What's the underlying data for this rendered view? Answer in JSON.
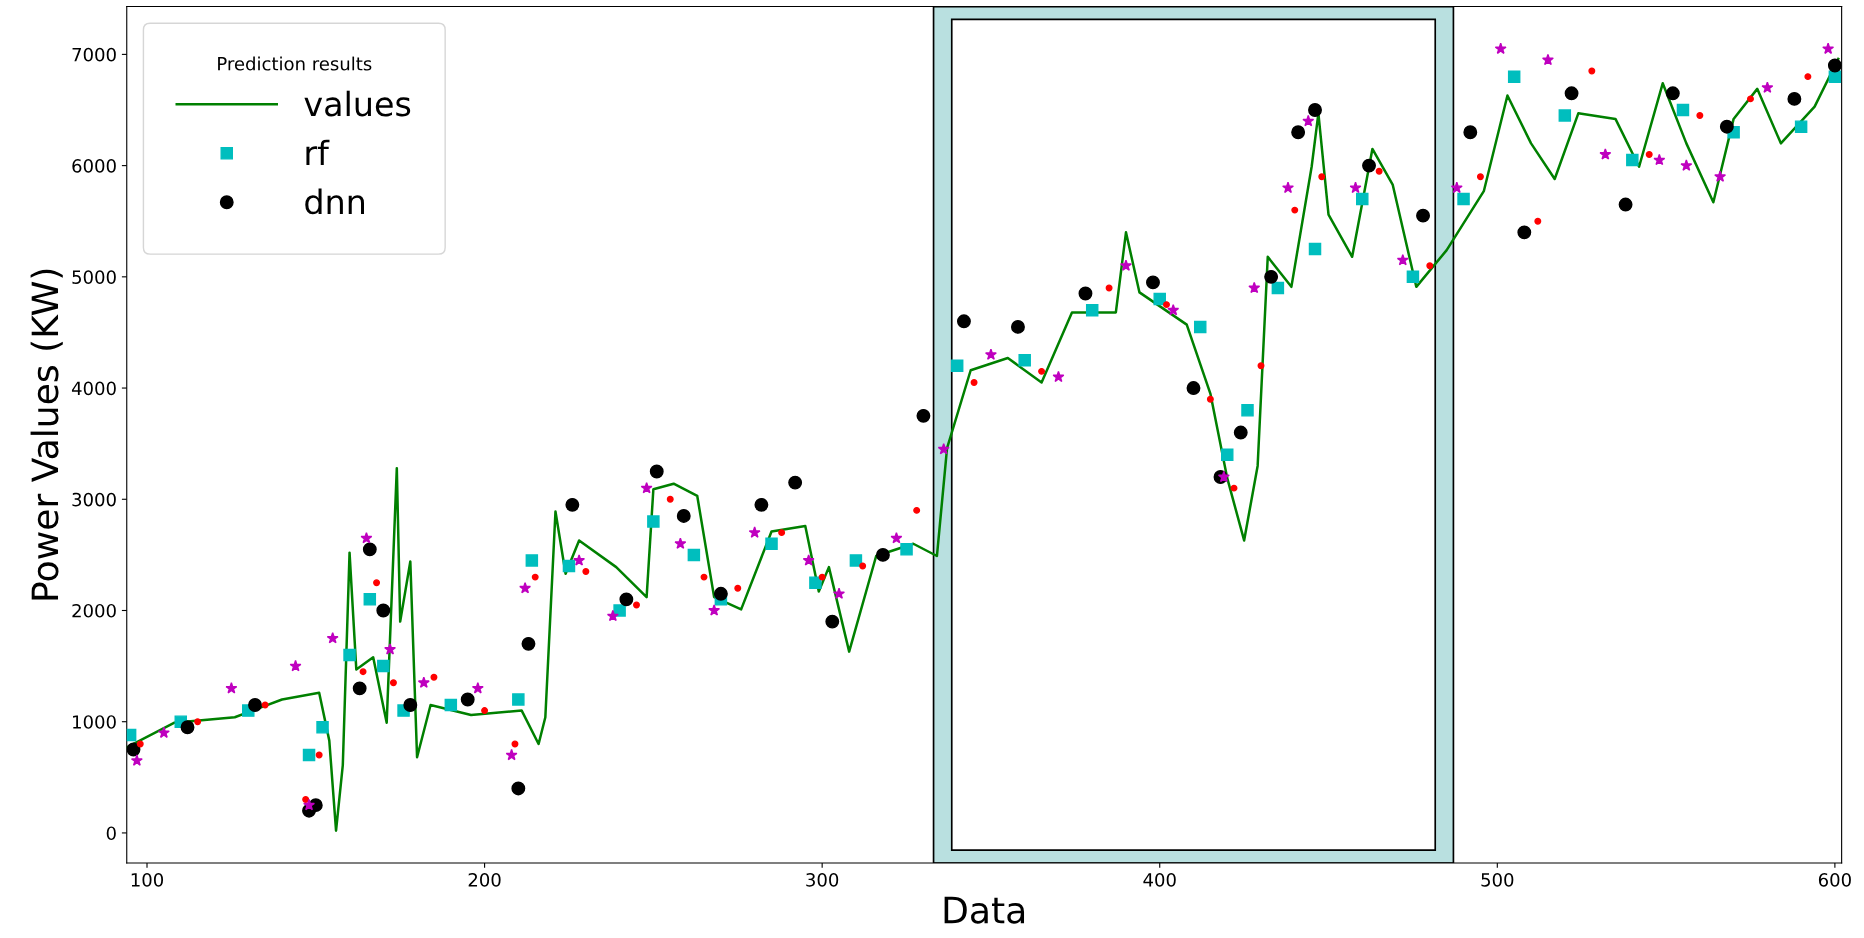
{
  "chart_data": {
    "type": "scatter",
    "legend_title": "Prediction results",
    "xlabel": "Data",
    "ylabel": "Power Values (KW)",
    "xlim": [
      94,
      602
    ],
    "ylim": [
      -270,
      7430
    ],
    "xticks": [
      100,
      200,
      300,
      400,
      500,
      600
    ],
    "yticks": [
      0,
      1000,
      2000,
      3000,
      4000,
      5000,
      6000,
      7000
    ],
    "grid": false,
    "legend": "top left",
    "bands": [
      {
        "axis": "x",
        "from": 333,
        "to": 487,
        "color": "#b9e0e0"
      }
    ],
    "series": [
      {
        "name": "values",
        "type": "line",
        "color": "#008000",
        "marker": "none",
        "line_style": "solid",
        "x": [
          94,
          108,
          126,
          140,
          151,
          154,
          156,
          158,
          160,
          162,
          167,
          171,
          174,
          175,
          178,
          180,
          184,
          196,
          211,
          216,
          218,
          221,
          224,
          228,
          239,
          248,
          250,
          256,
          263,
          268,
          276,
          285,
          295,
          299,
          302,
          308,
          316,
          327,
          334,
          337,
          344,
          355,
          365,
          374,
          387,
          390,
          394,
          408,
          415,
          420,
          425,
          429,
          432,
          439,
          445,
          447,
          450,
          457,
          463,
          469,
          476,
          485,
          496,
          503,
          510,
          517,
          524,
          535,
          542,
          549,
          556,
          564,
          570,
          577,
          584,
          594,
          601
        ],
        "values": [
          770,
          990,
          1040,
          1200,
          1260,
          830,
          20,
          610,
          2520,
          1470,
          1580,
          990,
          3280,
          1900,
          2440,
          680,
          1150,
          1060,
          1100,
          800,
          1040,
          2890,
          2330,
          2630,
          2390,
          2120,
          3090,
          3140,
          3030,
          2120,
          2010,
          2710,
          2760,
          2170,
          2390,
          1630,
          2490,
          2600,
          2490,
          3460,
          4160,
          4270,
          4050,
          4680,
          4680,
          5400,
          4860,
          4570,
          3950,
          3190,
          2630,
          3300,
          5180,
          4910,
          5990,
          6470,
          5560,
          5180,
          6150,
          5830,
          4910,
          5240,
          5770,
          6630,
          6200,
          5880,
          6470,
          6420,
          5990,
          6740,
          6200,
          5670,
          6420,
          6690,
          6200,
          6530,
          6960
        ]
      },
      {
        "name": "rf",
        "color": "#00bebe",
        "marker": "square",
        "x": [
          95,
          110,
          130,
          148,
          152,
          160,
          166,
          170,
          176,
          190,
          210,
          214,
          225,
          240,
          250,
          262,
          270,
          285,
          298,
          310,
          325,
          340,
          360,
          380,
          400,
          412,
          420,
          426,
          435,
          446,
          460,
          475,
          490,
          505,
          520,
          540,
          555,
          570,
          590,
          600
        ],
        "values": [
          880,
          1000,
          1100,
          700,
          950,
          1600,
          2100,
          1500,
          1100,
          1150,
          1200,
          2450,
          2400,
          2000,
          2800,
          2500,
          2100,
          2600,
          2250,
          2450,
          2550,
          4200,
          4250,
          4700,
          4800,
          4550,
          3400,
          3800,
          4900,
          5250,
          5700,
          5000,
          5700,
          6800,
          6450,
          6050,
          6500,
          6300,
          6350,
          6800
        ]
      },
      {
        "name": "dnn",
        "color": "#000000",
        "marker": "circle",
        "x": [
          96,
          112,
          132,
          148,
          150,
          163,
          166,
          170,
          178,
          195,
          210,
          213,
          226,
          242,
          251,
          259,
          270,
          282,
          292,
          303,
          318,
          330,
          342,
          358,
          378,
          398,
          410,
          418,
          424,
          433,
          441,
          446,
          462,
          478,
          492,
          508,
          522,
          538,
          552,
          568,
          588,
          600
        ],
        "values": [
          750,
          950,
          1150,
          200,
          250,
          1300,
          2550,
          2000,
          1150,
          1200,
          400,
          1700,
          2950,
          2100,
          3250,
          2850,
          2150,
          2950,
          3150,
          1900,
          2500,
          3750,
          4600,
          4550,
          4850,
          4950,
          4000,
          3200,
          3600,
          5000,
          6300,
          6500,
          6000,
          5550,
          6300,
          5400,
          6650,
          5650,
          6650,
          6350,
          6600,
          6900
        ]
      },
      {
        "color": "#ff0000",
        "marker": "circle_small",
        "x": [
          98,
          115,
          135,
          147,
          151,
          164,
          168,
          173,
          185,
          200,
          209,
          215,
          230,
          245,
          255,
          265,
          275,
          288,
          300,
          312,
          328,
          345,
          365,
          385,
          402,
          415,
          422,
          430,
          440,
          448,
          465,
          480,
          495,
          512,
          528,
          545,
          560,
          575,
          592
        ],
        "values": [
          800,
          1000,
          1150,
          300,
          700,
          1450,
          2250,
          1350,
          1400,
          1100,
          800,
          2300,
          2350,
          2050,
          3000,
          2300,
          2200,
          2700,
          2300,
          2400,
          2900,
          4050,
          4150,
          4900,
          4750,
          3900,
          3100,
          4200,
          5600,
          5900,
          5950,
          5100,
          5900,
          5500,
          6850,
          6100,
          6450,
          6600,
          6800
        ]
      },
      {
        "color": "#bf00bf",
        "marker": "star",
        "x": [
          97,
          105,
          125,
          144,
          148,
          155,
          165,
          172,
          182,
          198,
          208,
          212,
          228,
          238,
          248,
          258,
          268,
          280,
          296,
          305,
          322,
          336,
          350,
          370,
          390,
          404,
          419,
          428,
          438,
          444,
          458,
          472,
          488,
          501,
          515,
          532,
          548,
          556,
          566,
          580,
          598
        ],
        "values": [
          650,
          900,
          1300,
          1500,
          250,
          1750,
          2650,
          1650,
          1350,
          1300,
          700,
          2200,
          2450,
          1950,
          3100,
          2600,
          2000,
          2700,
          2450,
          2150,
          2650,
          3450,
          4300,
          4100,
          5100,
          4700,
          3200,
          4900,
          5800,
          6400,
          5800,
          5150,
          5800,
          7050,
          6950,
          6100,
          6050,
          6000,
          5900,
          6700,
          7050
        ]
      }
    ]
  }
}
